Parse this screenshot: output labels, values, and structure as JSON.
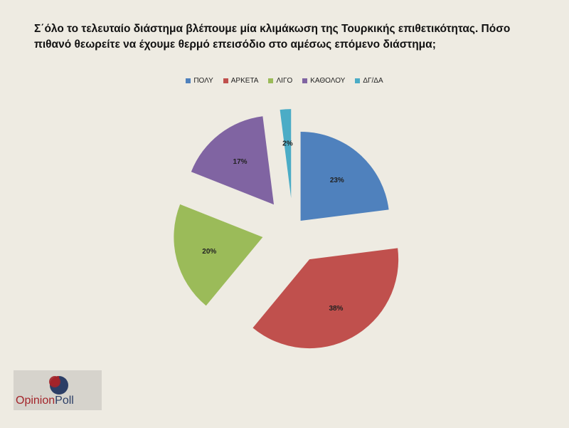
{
  "title_line1": "Σ΄όλο το τελευταίο διάστημα βλέπουμε μία κλιμάκωση της Τουρκικής επιθετικότητας. Πόσο",
  "title_line2": "πιθανό θεωρείτε να έχουμε θερμό επεισόδιο στο αμέσως επόμενο διάστημα;",
  "logo": {
    "word1": "Opinion",
    "word2": "Poll",
    "color1": "#a3242a",
    "color2": "#2c3e66"
  },
  "chart_data": {
    "type": "pie",
    "title": "",
    "legend_position": "top",
    "categories": [
      "ΠΟΛΥ",
      "ΑΡΚΕΤΑ",
      "ΛΙΓΟ",
      "ΚΑΘΟΛΟΥ",
      "ΔΓ/ΔΑ"
    ],
    "values": [
      23,
      38,
      20,
      17,
      2
    ],
    "labels": [
      "23%",
      "38%",
      "20%",
      "17%",
      "2%"
    ],
    "colors": [
      "#4f81bd",
      "#c0504d",
      "#9bbb59",
      "#8064a2",
      "#4bacc6"
    ],
    "exploded": true
  }
}
